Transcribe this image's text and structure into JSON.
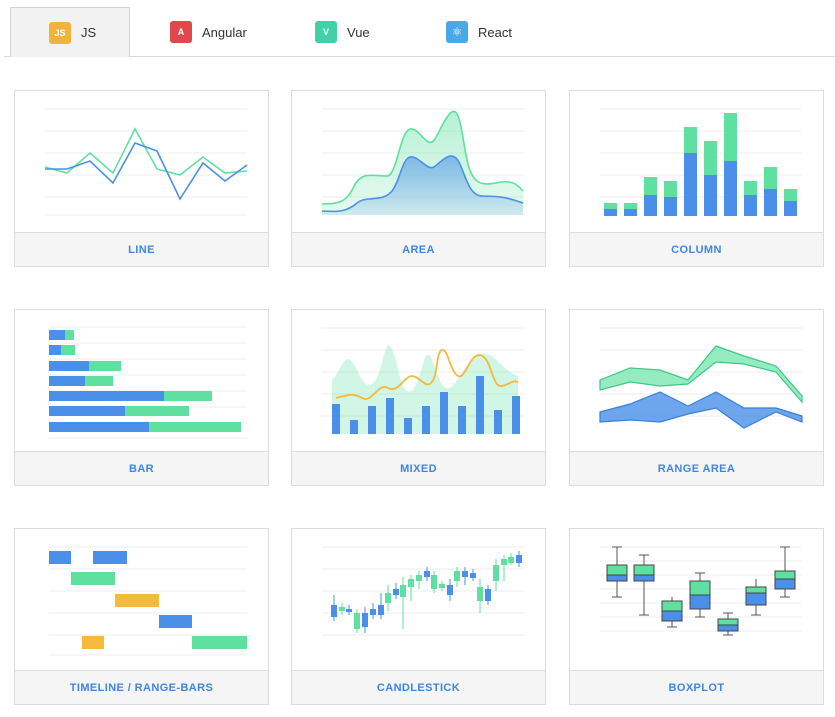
{
  "tabs": [
    {
      "label": "JS",
      "badge": "JS",
      "icon": "js-icon",
      "color": "#f2b33d",
      "active": true
    },
    {
      "label": "Angular",
      "badge": "A",
      "icon": "angular-icon",
      "color": "#e0474c",
      "active": false
    },
    {
      "label": "Vue",
      "badge": "V",
      "icon": "vue-icon",
      "color": "#41d1a8",
      "active": false
    },
    {
      "label": "React",
      "badge": "⚛",
      "icon": "react-icon",
      "color": "#4aa7e8",
      "active": false
    }
  ],
  "colors": {
    "blue": "#4a90e8",
    "green": "#5fe0a0",
    "orange": "#f5b93b",
    "link": "#3d86e2"
  },
  "cards": [
    {
      "label": "LINE"
    },
    {
      "label": "AREA"
    },
    {
      "label": "COLUMN"
    },
    {
      "label": "BAR"
    },
    {
      "label": "MIXED"
    },
    {
      "label": "RANGE AREA"
    },
    {
      "label": "TIMELINE / RANGE-BARS"
    },
    {
      "label": "CANDLESTICK"
    },
    {
      "label": "BOXPLOT"
    }
  ]
}
